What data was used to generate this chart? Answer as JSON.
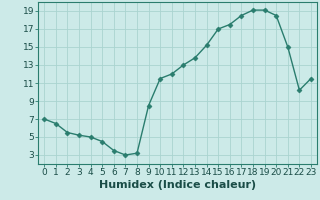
{
  "x": [
    0,
    1,
    2,
    3,
    4,
    5,
    6,
    7,
    8,
    9,
    10,
    11,
    12,
    13,
    14,
    15,
    16,
    17,
    18,
    19,
    20,
    21,
    22,
    23
  ],
  "y": [
    7.0,
    6.5,
    5.5,
    5.2,
    5.0,
    4.5,
    3.5,
    3.0,
    3.2,
    8.5,
    11.5,
    12.0,
    13.0,
    13.8,
    15.2,
    17.0,
    17.5,
    18.5,
    19.1,
    19.1,
    18.5,
    15.0,
    10.2,
    11.5
  ],
  "xlabel": "Humidex (Indice chaleur)",
  "yticks": [
    3,
    5,
    7,
    9,
    11,
    13,
    15,
    17,
    19
  ],
  "xticks": [
    0,
    1,
    2,
    3,
    4,
    5,
    6,
    7,
    8,
    9,
    10,
    11,
    12,
    13,
    14,
    15,
    16,
    17,
    18,
    19,
    20,
    21,
    22,
    23
  ],
  "xlim": [
    -0.5,
    23.5
  ],
  "ylim": [
    2.0,
    20.0
  ],
  "line_color": "#2a7d6e",
  "marker_color": "#2a7d6e",
  "bg_color": "#cceae8",
  "grid_color": "#aad4d0",
  "xlabel_fontsize": 8,
  "tick_fontsize": 6.5
}
